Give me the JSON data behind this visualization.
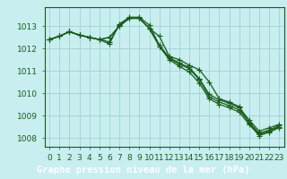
{
  "title": "Graphe pression niveau de la mer (hPa)",
  "bg_color": "#c8eef0",
  "line_color": "#1a5c1a",
  "grid_color": "#99cccc",
  "spine_color": "#1a5c1a",
  "x_ticks": [
    0,
    1,
    2,
    3,
    4,
    5,
    6,
    7,
    8,
    9,
    10,
    11,
    12,
    13,
    14,
    15,
    16,
    17,
    18,
    19,
    20,
    21,
    22,
    23
  ],
  "y_ticks": [
    1008,
    1009,
    1010,
    1011,
    1012,
    1013
  ],
  "ylim": [
    1007.6,
    1013.85
  ],
  "xlim": [
    -0.5,
    23.5
  ],
  "series": [
    [
      1012.4,
      1012.55,
      1012.75,
      1012.6,
      1012.5,
      1012.4,
      1012.5,
      1013.0,
      1013.35,
      1013.35,
      1012.9,
      1012.55,
      1011.65,
      1011.5,
      1011.25,
      1011.05,
      1010.5,
      1009.75,
      1009.6,
      1009.4,
      1008.65,
      1008.15,
      1008.3,
      1008.5
    ],
    [
      1012.4,
      1012.55,
      1012.75,
      1012.6,
      1012.5,
      1012.4,
      1012.5,
      1013.0,
      1013.35,
      1013.35,
      1012.9,
      1012.1,
      1011.55,
      1011.3,
      1011.1,
      1010.6,
      1009.85,
      1009.6,
      1009.45,
      1009.25,
      1008.7,
      1008.2,
      1008.35,
      1008.55
    ],
    [
      1012.4,
      1012.55,
      1012.75,
      1012.6,
      1012.5,
      1012.4,
      1012.3,
      1013.05,
      1013.35,
      1013.35,
      1012.9,
      1012.1,
      1011.5,
      1011.2,
      1010.95,
      1010.45,
      1009.75,
      1009.5,
      1009.35,
      1009.15,
      1008.6,
      1008.1,
      1008.25,
      1008.45
    ],
    [
      1012.4,
      1012.55,
      1012.75,
      1012.6,
      1012.5,
      1012.4,
      1012.2,
      1013.1,
      1013.4,
      1013.4,
      1013.05,
      1012.15,
      1011.6,
      1011.35,
      1011.15,
      1010.65,
      1009.95,
      1009.7,
      1009.55,
      1009.35,
      1008.8,
      1008.3,
      1008.45,
      1008.6
    ]
  ],
  "marker": "+",
  "markersize": 4,
  "linewidth": 0.9,
  "tick_fontsize": 6.5,
  "title_fontsize": 7.5,
  "title_color": "white",
  "tick_color": "#1a5c1a",
  "title_bg": "#2a7a2a"
}
